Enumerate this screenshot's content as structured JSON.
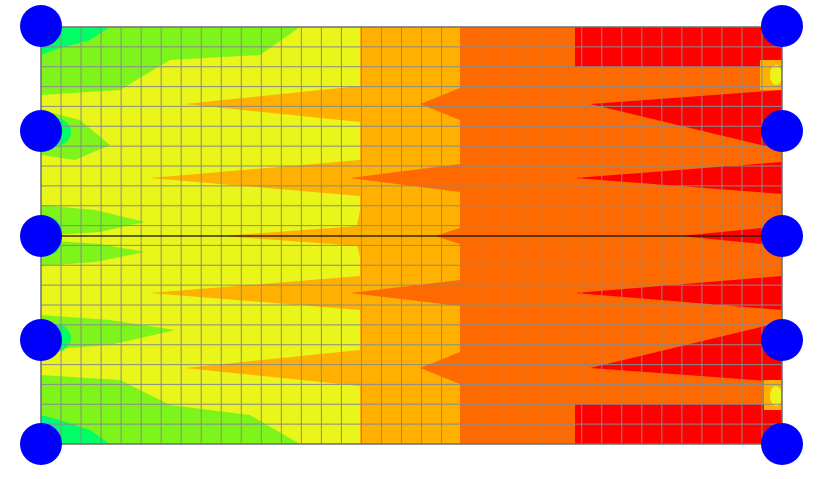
{
  "view": {
    "background": "#ffffff",
    "mesh_columns": 37,
    "mesh_rows": 21,
    "mesh_line_color": "#8a8a8a",
    "mesh_outline_color": "#6f6f6f",
    "center_line_color": "#111111",
    "center_marker_color": "#111111",
    "support_color": "#0000ff",
    "support_count_per_side": 5,
    "contour_palette": [
      "#00c8ff",
      "#00ff66",
      "#7ef51a",
      "#eaf51a",
      "#ffb000",
      "#ff6a00",
      "#ff0000"
    ],
    "notes_visible": "no printed text"
  }
}
